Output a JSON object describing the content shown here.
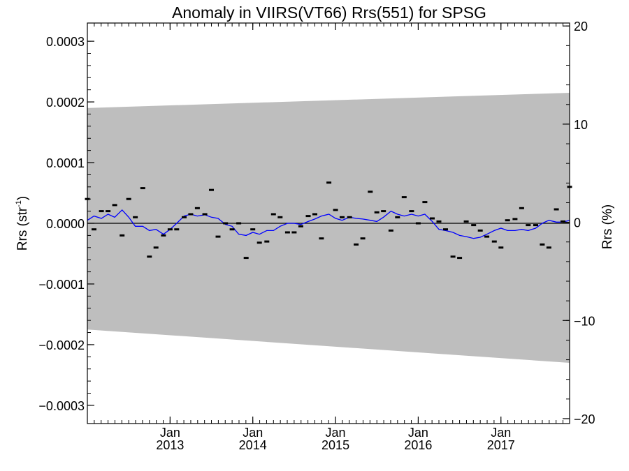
{
  "chart_data": {
    "type": "scatter",
    "title": "Anomaly in VIIRS(VT66) Rrs(551) for SPSG",
    "ylabel_left_main": "Rrs (str",
    "ylabel_left_sup": "-1",
    "ylabel_left_close": ")",
    "ylabel_right": "Rrs (%)",
    "xlim": [
      2012.0,
      2017.83
    ],
    "ylim_left": [
      -0.00033,
      0.00033
    ],
    "ylim_right": [
      -20.5,
      20.3
    ],
    "left_ticks": [
      {
        "value": 0.0003,
        "label": "0.0003"
      },
      {
        "value": 0.0002,
        "label": "0.0002"
      },
      {
        "value": 0.0001,
        "label": "0.0001"
      },
      {
        "value": 0.0,
        "label": "0.0000"
      },
      {
        "value": -0.0001,
        "label": "−0.0001"
      },
      {
        "value": -0.0002,
        "label": "−0.0002"
      },
      {
        "value": -0.0003,
        "label": "−0.0003"
      }
    ],
    "right_ticks": [
      {
        "value": 20,
        "label": "20"
      },
      {
        "value": 10,
        "label": "10"
      },
      {
        "value": 0,
        "label": "0"
      },
      {
        "value": -10,
        "label": "−10"
      },
      {
        "value": -20,
        "label": "−20"
      }
    ],
    "x_ticks": [
      {
        "value": 2013.0,
        "month": "Jan",
        "year": "2013"
      },
      {
        "value": 2014.0,
        "month": "Jan",
        "year": "2014"
      },
      {
        "value": 2015.0,
        "month": "Jan",
        "year": "2015"
      },
      {
        "value": 2016.0,
        "month": "Jan",
        "year": "2016"
      },
      {
        "value": 2017.0,
        "month": "Jan",
        "year": "2017"
      }
    ],
    "uncertainty_band": {
      "x": [
        2012.0,
        2017.83
      ],
      "upper": [
        0.00019,
        0.000215
      ],
      "lower": [
        -0.000175,
        -0.00023
      ],
      "color": "#bebebe"
    },
    "zero_line_color": "#000000",
    "anomaly_points": {
      "color": "#000000",
      "x": [
        2012.0,
        2012.08,
        2012.17,
        2012.25,
        2012.33,
        2012.42,
        2012.5,
        2012.58,
        2012.67,
        2012.75,
        2012.83,
        2012.92,
        2013.0,
        2013.08,
        2013.17,
        2013.25,
        2013.33,
        2013.42,
        2013.5,
        2013.58,
        2013.67,
        2013.75,
        2013.83,
        2013.92,
        2014.0,
        2014.08,
        2014.17,
        2014.25,
        2014.33,
        2014.42,
        2014.5,
        2014.58,
        2014.67,
        2014.75,
        2014.83,
        2014.92,
        2015.0,
        2015.08,
        2015.17,
        2015.25,
        2015.33,
        2015.42,
        2015.5,
        2015.58,
        2015.67,
        2015.75,
        2015.83,
        2015.92,
        2016.0,
        2016.08,
        2016.17,
        2016.25,
        2016.33,
        2016.42,
        2016.5,
        2016.58,
        2016.67,
        2016.75,
        2016.83,
        2016.92,
        2017.0,
        2017.08,
        2017.17,
        2017.25,
        2017.33,
        2017.42,
        2017.5,
        2017.58,
        2017.67,
        2017.75,
        2017.83
      ],
      "y": [
        4e-05,
        -1e-05,
        2e-05,
        2e-05,
        3e-05,
        -2e-05,
        4e-05,
        1e-05,
        5.8e-05,
        -5.5e-05,
        -4e-05,
        -2e-05,
        -1e-05,
        -1e-05,
        1e-05,
        1.5e-05,
        2.5e-05,
        1.5e-05,
        5.5e-05,
        -2.2e-05,
        0.0,
        -1e-05,
        0.0,
        -5.7e-05,
        -1e-05,
        -3.2e-05,
        -3e-05,
        1.5e-05,
        1e-05,
        -1.5e-05,
        -1.5e-05,
        -5e-06,
        1.2e-05,
        1.5e-05,
        -2.5e-05,
        6.7e-05,
        2.2e-05,
        1e-05,
        1e-05,
        -3.5e-05,
        -2.5e-05,
        5.2e-05,
        1.8e-05,
        2e-05,
        -1.2e-05,
        1e-05,
        4.3e-05,
        2e-05,
        0.0,
        3.5e-05,
        8e-06,
        3e-06,
        -1e-05,
        -5.5e-05,
        -5.7e-05,
        3e-06,
        -3e-06,
        -1.2e-05,
        -2.2e-05,
        -3e-05,
        -4e-05,
        5e-06,
        7e-06,
        2.5e-05,
        -3e-06,
        -3e-06,
        -3.5e-05,
        -4e-05,
        2.3e-05,
        3e-06,
        6e-05
      ]
    },
    "smoothed_line": {
      "color": "#0000ff",
      "x": [
        2012.0,
        2012.08,
        2012.17,
        2012.25,
        2012.33,
        2012.42,
        2012.5,
        2012.58,
        2012.67,
        2012.75,
        2012.83,
        2012.92,
        2013.0,
        2013.08,
        2013.17,
        2013.25,
        2013.33,
        2013.42,
        2013.5,
        2013.58,
        2013.67,
        2013.75,
        2013.83,
        2013.92,
        2014.0,
        2014.08,
        2014.17,
        2014.25,
        2014.33,
        2014.42,
        2014.5,
        2014.58,
        2014.67,
        2014.75,
        2014.83,
        2014.92,
        2015.0,
        2015.08,
        2015.17,
        2015.25,
        2015.33,
        2015.42,
        2015.5,
        2015.58,
        2015.67,
        2015.75,
        2015.83,
        2015.92,
        2016.0,
        2016.08,
        2016.17,
        2016.25,
        2016.33,
        2016.42,
        2016.5,
        2016.58,
        2016.67,
        2016.75,
        2016.83,
        2016.92,
        2017.0,
        2017.08,
        2017.17,
        2017.25,
        2017.33,
        2017.42,
        2017.5,
        2017.58,
        2017.67,
        2017.75,
        2017.83
      ],
      "y": [
        5e-06,
        1.2e-05,
        8e-06,
        1.5e-05,
        1e-05,
        2.2e-05,
        1e-05,
        -5e-06,
        -5e-06,
        -1.2e-05,
        -1e-05,
        -1.8e-05,
        -1e-05,
        0.0,
        1.2e-05,
        1.5e-05,
        1.2e-05,
        1.4e-05,
        1e-05,
        8e-06,
        -2e-06,
        -5e-06,
        -1.8e-05,
        -2e-05,
        -1.5e-05,
        -1.8e-05,
        -1.2e-05,
        -1.2e-05,
        -5e-06,
        0.0,
        0.0,
        -2e-06,
        3e-06,
        7e-06,
        1.2e-05,
        1.5e-05,
        8e-06,
        5e-06,
        1e-05,
        8e-06,
        7e-06,
        5e-06,
        3e-06,
        1e-05,
        2e-05,
        1.5e-05,
        1.2e-05,
        1.5e-05,
        1.2e-05,
        1.5e-05,
        3e-06,
        -1e-05,
        -1.2e-05,
        -1.5e-05,
        -2e-05,
        -2.2e-05,
        -2.5e-05,
        -2.3e-05,
        -1.8e-05,
        -1.2e-05,
        -8e-06,
        -1.2e-05,
        -1.2e-05,
        -1e-05,
        -1.2e-05,
        -8e-06,
        0.0,
        5e-06,
        2e-06,
        2e-06,
        5e-06
      ]
    }
  }
}
